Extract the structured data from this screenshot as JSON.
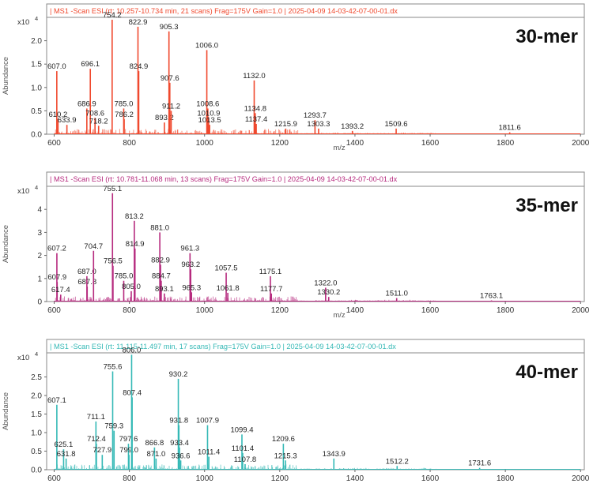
{
  "chart_data": [
    {
      "type": "line",
      "header": "| MS1 -Scan ESI (rt: 10.257-10.734 min, 21 scans) Frag=175V Gain=1.0 | 2025-04-09 14-03-42-07-00-01.dx",
      "label": "30-mer",
      "exponent": "x10",
      "exponent_power": "4",
      "ylabel": "Abundance",
      "xlabel": "m/z",
      "color": "#f0492e",
      "xlim": [
        580,
        2010
      ],
      "ylim": [
        0,
        2.5
      ],
      "xticks": [
        "600",
        "800",
        "1000",
        "1200",
        "1400",
        "1600",
        "1800",
        "2000"
      ],
      "yticks": [
        "0.0",
        "0.5",
        "1.0",
        "1.5",
        "2.0"
      ],
      "peaks": [
        {
          "x": 607.0,
          "y": 1.35,
          "label": "607.0"
        },
        {
          "x": 610.2,
          "y": 0.32,
          "label": "610.2"
        },
        {
          "x": 633.9,
          "y": 0.2,
          "label": "633.9"
        },
        {
          "x": 686.9,
          "y": 0.55,
          "label": "686.9"
        },
        {
          "x": 696.1,
          "y": 1.4,
          "label": "696.1"
        },
        {
          "x": 708.6,
          "y": 0.35,
          "label": "708.6"
        },
        {
          "x": 718.2,
          "y": 0.18,
          "label": "718.2"
        },
        {
          "x": 754.2,
          "y": 2.45,
          "label": "754.2"
        },
        {
          "x": 785.0,
          "y": 0.55,
          "label": "785.0"
        },
        {
          "x": 786.2,
          "y": 0.32,
          "label": "786.2"
        },
        {
          "x": 822.9,
          "y": 2.3,
          "label": "822.9"
        },
        {
          "x": 824.9,
          "y": 1.35,
          "label": "824.9"
        },
        {
          "x": 893.2,
          "y": 0.25,
          "label": "893.2"
        },
        {
          "x": 905.3,
          "y": 2.2,
          "label": "905.3"
        },
        {
          "x": 907.6,
          "y": 1.1,
          "label": "907.6"
        },
        {
          "x": 911.2,
          "y": 0.5,
          "label": "911.2"
        },
        {
          "x": 1006.0,
          "y": 1.8,
          "label": "1006.0"
        },
        {
          "x": 1008.6,
          "y": 0.55,
          "label": "1008.6"
        },
        {
          "x": 1010.9,
          "y": 0.35,
          "label": "1010.9"
        },
        {
          "x": 1013.5,
          "y": 0.2,
          "label": "1013.5"
        },
        {
          "x": 1132.0,
          "y": 1.15,
          "label": "1132.0"
        },
        {
          "x": 1134.8,
          "y": 0.45,
          "label": "1134.8"
        },
        {
          "x": 1137.4,
          "y": 0.22,
          "label": "1137.4"
        },
        {
          "x": 1215.9,
          "y": 0.12,
          "label": "1215.9"
        },
        {
          "x": 1293.7,
          "y": 0.3,
          "label": "1293.7"
        },
        {
          "x": 1303.3,
          "y": 0.12,
          "label": "1303.3"
        },
        {
          "x": 1393.2,
          "y": 0.07,
          "label": "1393.2"
        },
        {
          "x": 1509.6,
          "y": 0.12,
          "label": "1509.6"
        },
        {
          "x": 1811.6,
          "y": 0.04,
          "label": "1811.6"
        }
      ]
    },
    {
      "type": "line",
      "header": "| MS1 -Scan ESI (rt: 10.781-11.068 min, 13 scans) Frag=175V Gain=1.0 | 2025-04-09 14-03-42-07-00-01.dx",
      "label": "35-mer",
      "exponent": "x10",
      "exponent_power": "4",
      "ylabel": "Abundance",
      "xlabel": "m/z",
      "color": "#b62a7e",
      "xlim": [
        580,
        2010
      ],
      "ylim": [
        0,
        5.0
      ],
      "xticks": [
        "600",
        "800",
        "1000",
        "1200",
        "1400",
        "1600",
        "1800",
        "2000"
      ],
      "yticks": [
        "0",
        "1",
        "2",
        "3",
        "4"
      ],
      "peaks": [
        {
          "x": 607.2,
          "y": 2.1,
          "label": "607.2"
        },
        {
          "x": 607.9,
          "y": 0.85,
          "label": "607.9"
        },
        {
          "x": 617.4,
          "y": 0.3,
          "label": "617.4"
        },
        {
          "x": 687.0,
          "y": 1.1,
          "label": "687.0"
        },
        {
          "x": 687.8,
          "y": 0.65,
          "label": "687.8"
        },
        {
          "x": 704.7,
          "y": 2.2,
          "label": "704.7"
        },
        {
          "x": 755.1,
          "y": 4.7,
          "label": "755.1"
        },
        {
          "x": 756.5,
          "y": 1.55,
          "label": "756.5"
        },
        {
          "x": 785.0,
          "y": 0.9,
          "label": "785.0"
        },
        {
          "x": 805.0,
          "y": 0.45,
          "label": "805.0"
        },
        {
          "x": 813.2,
          "y": 3.5,
          "label": "813.2"
        },
        {
          "x": 814.9,
          "y": 2.3,
          "label": "814.9"
        },
        {
          "x": 881.0,
          "y": 3.0,
          "label": "881.0"
        },
        {
          "x": 882.9,
          "y": 1.6,
          "label": "882.9"
        },
        {
          "x": 884.7,
          "y": 0.9,
          "label": "884.7"
        },
        {
          "x": 893.1,
          "y": 0.35,
          "label": "893.1"
        },
        {
          "x": 961.3,
          "y": 2.1,
          "label": "961.3"
        },
        {
          "x": 963.2,
          "y": 1.4,
          "label": "963.2"
        },
        {
          "x": 965.3,
          "y": 0.4,
          "label": "965.3"
        },
        {
          "x": 1057.5,
          "y": 1.25,
          "label": "1057.5"
        },
        {
          "x": 1061.8,
          "y": 0.38,
          "label": "1061.8"
        },
        {
          "x": 1175.1,
          "y": 1.1,
          "label": "1175.1"
        },
        {
          "x": 1177.7,
          "y": 0.35,
          "label": "1177.7"
        },
        {
          "x": 1322.0,
          "y": 0.6,
          "label": "1322.0"
        },
        {
          "x": 1330.2,
          "y": 0.2,
          "label": "1330.2"
        },
        {
          "x": 1511.0,
          "y": 0.15,
          "label": "1511.0"
        },
        {
          "x": 1763.1,
          "y": 0.05,
          "label": "1763.1"
        }
      ]
    },
    {
      "type": "line",
      "header": "| MS1 -Scan ESI (rt: 11.115-11.497 min, 17 scans) Frag=175V Gain=1.0 | 2025-04-09 14-03-42-07-00-01.dx",
      "label": "40-mer",
      "exponent": "x10",
      "exponent_power": "4",
      "ylabel": "Abundance",
      "xlabel": "",
      "color": "#35b9b6",
      "xlim": [
        580,
        2010
      ],
      "ylim": [
        0,
        3.15
      ],
      "xticks": [
        "600",
        "800",
        "1000",
        "1200",
        "1400",
        "1600",
        "1800",
        "2000"
      ],
      "yticks": [
        "0.0",
        "0.5",
        "1.0",
        "1.5",
        "2.0",
        "2.5"
      ],
      "peaks": [
        {
          "x": 607.1,
          "y": 1.75,
          "label": "607.1"
        },
        {
          "x": 625.1,
          "y": 0.55,
          "label": "625.1"
        },
        {
          "x": 631.8,
          "y": 0.3,
          "label": "631.8"
        },
        {
          "x": 711.1,
          "y": 1.3,
          "label": "711.1"
        },
        {
          "x": 712.4,
          "y": 0.7,
          "label": "712.4"
        },
        {
          "x": 727.9,
          "y": 0.4,
          "label": "727.9"
        },
        {
          "x": 755.6,
          "y": 2.65,
          "label": "755.6"
        },
        {
          "x": 759.3,
          "y": 1.05,
          "label": "759.3"
        },
        {
          "x": 797.6,
          "y": 0.7,
          "label": "797.6"
        },
        {
          "x": 799.0,
          "y": 0.4,
          "label": "799.0"
        },
        {
          "x": 806.0,
          "y": 3.1,
          "label": "806.0"
        },
        {
          "x": 807.4,
          "y": 1.95,
          "label": "807.4"
        },
        {
          "x": 866.8,
          "y": 0.6,
          "label": "866.8"
        },
        {
          "x": 871.0,
          "y": 0.3,
          "label": "871.0"
        },
        {
          "x": 930.2,
          "y": 2.45,
          "label": "930.2"
        },
        {
          "x": 931.8,
          "y": 1.2,
          "label": "931.8"
        },
        {
          "x": 933.4,
          "y": 0.6,
          "label": "933.4"
        },
        {
          "x": 936.6,
          "y": 0.25,
          "label": "936.6"
        },
        {
          "x": 1007.9,
          "y": 1.2,
          "label": "1007.9"
        },
        {
          "x": 1011.4,
          "y": 0.35,
          "label": "1011.4"
        },
        {
          "x": 1099.4,
          "y": 0.95,
          "label": "1099.4"
        },
        {
          "x": 1101.4,
          "y": 0.45,
          "label": "1101.4"
        },
        {
          "x": 1107.8,
          "y": 0.15,
          "label": "1107.8"
        },
        {
          "x": 1209.6,
          "y": 0.7,
          "label": "1209.6"
        },
        {
          "x": 1215.3,
          "y": 0.25,
          "label": "1215.3"
        },
        {
          "x": 1343.9,
          "y": 0.3,
          "label": "1343.9"
        },
        {
          "x": 1512.2,
          "y": 0.1,
          "label": "1512.2"
        },
        {
          "x": 1731.6,
          "y": 0.05,
          "label": "1731.6"
        }
      ]
    }
  ]
}
